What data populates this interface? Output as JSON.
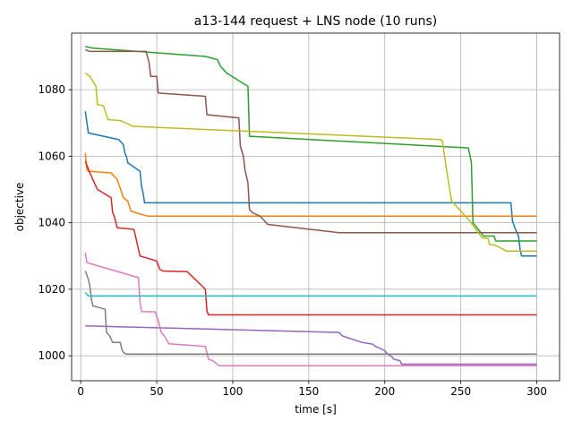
{
  "chart_data": {
    "type": "line",
    "title": "a13-144 request + LNS node (10 runs)",
    "xlabel": "time [s]",
    "ylabel": "objective",
    "xlim": [
      -6,
      315
    ],
    "ylim": [
      992.5,
      1097
    ],
    "xticks": [
      0,
      50,
      100,
      150,
      200,
      250,
      300
    ],
    "yticks": [
      1000,
      1020,
      1040,
      1060,
      1080
    ],
    "grid": true,
    "series": [
      {
        "color": "#1f77b4",
        "points": [
          [
            3,
            1073.5
          ],
          [
            5,
            1067
          ],
          [
            25,
            1065
          ],
          [
            28,
            1063.5
          ],
          [
            29,
            1061
          ],
          [
            30,
            1060
          ],
          [
            31,
            1058
          ],
          [
            39,
            1055.5
          ],
          [
            40,
            1051
          ],
          [
            41,
            1049
          ],
          [
            42,
            1046
          ],
          [
            283,
            1046
          ],
          [
            284,
            1040.5
          ],
          [
            286,
            1038
          ],
          [
            288,
            1036
          ],
          [
            289,
            1032
          ],
          [
            290,
            1030
          ],
          [
            300,
            1030
          ]
        ]
      },
      {
        "color": "#ff7f0e",
        "points": [
          [
            3,
            1061
          ],
          [
            4,
            1056
          ],
          [
            5,
            1055.5
          ],
          [
            20,
            1055
          ],
          [
            24,
            1053
          ],
          [
            27,
            1049
          ],
          [
            28,
            1047.5
          ],
          [
            31,
            1046.5
          ],
          [
            33,
            1043.5
          ],
          [
            40,
            1042.5
          ],
          [
            44,
            1042
          ],
          [
            300,
            1042
          ]
        ]
      },
      {
        "color": "#2ca02c",
        "points": [
          [
            3,
            1093
          ],
          [
            8,
            1092.5
          ],
          [
            82,
            1090
          ],
          [
            90,
            1089
          ],
          [
            92,
            1087
          ],
          [
            96,
            1085
          ],
          [
            110,
            1081
          ],
          [
            111,
            1066
          ],
          [
            255,
            1062.5
          ],
          [
            257,
            1058
          ],
          [
            258,
            1040
          ],
          [
            265,
            1036
          ],
          [
            272,
            1036
          ],
          [
            273,
            1034.5
          ],
          [
            300,
            1034.5
          ]
        ]
      },
      {
        "color": "#d62728",
        "points": [
          [
            3,
            1058.5
          ],
          [
            6,
            1055
          ],
          [
            11,
            1050
          ],
          [
            20,
            1047.5
          ],
          [
            21,
            1043
          ],
          [
            22,
            1042
          ],
          [
            24,
            1038.5
          ],
          [
            35,
            1038
          ],
          [
            39,
            1030
          ],
          [
            50,
            1028.5
          ],
          [
            52,
            1026
          ],
          [
            54,
            1025.5
          ],
          [
            70,
            1025.3
          ],
          [
            82,
            1020
          ],
          [
            83,
            1013.5
          ],
          [
            84,
            1012.3
          ],
          [
            300,
            1012.3
          ]
        ]
      },
      {
        "color": "#9467bd",
        "points": [
          [
            3,
            1009
          ],
          [
            170,
            1007
          ],
          [
            172,
            1006
          ],
          [
            185,
            1004
          ],
          [
            192,
            1003.5
          ],
          [
            194,
            1002.8
          ],
          [
            198,
            1002
          ],
          [
            200,
            1001.5
          ],
          [
            202,
            1000.5
          ],
          [
            204,
            1000
          ],
          [
            206,
            999
          ],
          [
            210,
            998.5
          ],
          [
            211,
            997.5
          ],
          [
            300,
            997.5
          ]
        ]
      },
      {
        "color": "#8c564b",
        "points": [
          [
            3,
            1092
          ],
          [
            6,
            1091.5
          ],
          [
            43,
            1091.5
          ],
          [
            45,
            1088
          ],
          [
            46,
            1084
          ],
          [
            50,
            1084
          ],
          [
            51,
            1079
          ],
          [
            82,
            1078
          ],
          [
            83,
            1072.5
          ],
          [
            104,
            1071.5
          ],
          [
            105,
            1063
          ],
          [
            107,
            1060
          ],
          [
            108,
            1056
          ],
          [
            110,
            1052
          ],
          [
            111,
            1044
          ],
          [
            113,
            1043
          ],
          [
            118,
            1042
          ],
          [
            120,
            1041
          ],
          [
            123,
            1039.5
          ],
          [
            170,
            1037
          ],
          [
            300,
            1037
          ]
        ]
      },
      {
        "color": "#e377c2",
        "points": [
          [
            3,
            1031
          ],
          [
            4,
            1028
          ],
          [
            38,
            1023.5
          ],
          [
            39,
            1016
          ],
          [
            40,
            1013.3
          ],
          [
            49,
            1013.2
          ],
          [
            51,
            1010.5
          ],
          [
            53,
            1007
          ],
          [
            55,
            1006
          ],
          [
            58,
            1003.6
          ],
          [
            82,
            1002.8
          ],
          [
            84,
            999
          ],
          [
            87,
            998.5
          ],
          [
            91,
            997
          ],
          [
            300,
            997
          ]
        ]
      },
      {
        "color": "#7f7f7f",
        "points": [
          [
            3,
            1025.5
          ],
          [
            5,
            1023
          ],
          [
            6,
            1021
          ],
          [
            7,
            1017
          ],
          [
            8,
            1015
          ],
          [
            16,
            1014
          ],
          [
            17,
            1007
          ],
          [
            19,
            1006
          ],
          [
            21,
            1004
          ],
          [
            26,
            1004
          ],
          [
            27,
            1002
          ],
          [
            28,
            1001
          ],
          [
            30,
            1000.5
          ],
          [
            300,
            1000.5
          ]
        ]
      },
      {
        "color": "#bcbd22",
        "points": [
          [
            3,
            1085
          ],
          [
            6,
            1084
          ],
          [
            8,
            1082.5
          ],
          [
            10,
            1081
          ],
          [
            11,
            1075.5
          ],
          [
            14,
            1075.3
          ],
          [
            15,
            1075
          ],
          [
            18,
            1071
          ],
          [
            26,
            1070.7
          ],
          [
            32,
            1069.5
          ],
          [
            34,
            1069
          ],
          [
            237,
            1065
          ],
          [
            238,
            1064.5
          ],
          [
            239,
            1061
          ],
          [
            240,
            1058
          ],
          [
            242,
            1052
          ],
          [
            244,
            1046.5
          ],
          [
            255,
            1041
          ],
          [
            260,
            1038
          ],
          [
            264,
            1035.5
          ],
          [
            268,
            1035.3
          ],
          [
            269,
            1033.5
          ],
          [
            273,
            1033.2
          ],
          [
            280,
            1031.5
          ],
          [
            300,
            1031.5
          ]
        ]
      },
      {
        "color": "#17becf",
        "points": [
          [
            3,
            1019
          ],
          [
            5,
            1018
          ],
          [
            300,
            1018
          ]
        ]
      }
    ]
  }
}
